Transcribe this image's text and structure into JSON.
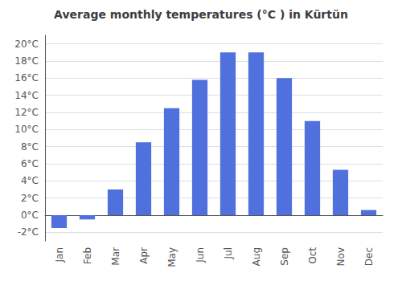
{
  "chart_data": {
    "type": "bar",
    "title": "Average monthly temperatures (°C ) in Kürtün",
    "categories": [
      "Jan",
      "Feb",
      "Mar",
      "Apr",
      "May",
      "Jun",
      "Jul",
      "Aug",
      "Sep",
      "Oct",
      "Nov",
      "Dec"
    ],
    "values": [
      -1.5,
      -0.5,
      3.0,
      8.5,
      12.5,
      15.8,
      19.0,
      19.0,
      16.0,
      11.0,
      5.3,
      0.6
    ],
    "ylim": [
      -3,
      21
    ],
    "yticks": [
      {
        "value": -2,
        "label": "-2°C"
      },
      {
        "value": 0,
        "label": "0°C"
      },
      {
        "value": 2,
        "label": "2°C"
      },
      {
        "value": 4,
        "label": "4°C"
      },
      {
        "value": 6,
        "label": "6°C"
      },
      {
        "value": 8,
        "label": "8°C"
      },
      {
        "value": 10,
        "label": "10°C"
      },
      {
        "value": 12,
        "label": "12°C"
      },
      {
        "value": 14,
        "label": "14°C"
      },
      {
        "value": 16,
        "label": "16°C"
      },
      {
        "value": 18,
        "label": "18°C"
      },
      {
        "value": 20,
        "label": "20°C"
      }
    ],
    "grid": true
  }
}
